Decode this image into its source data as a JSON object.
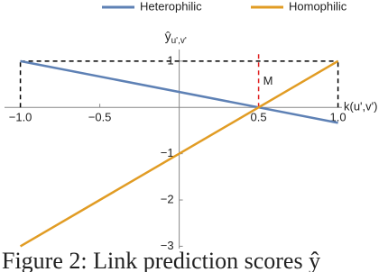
{
  "chart_data": {
    "type": "line",
    "x_label": "k(u',v')",
    "y_label": "ŷ",
    "y_label_sub": "u',v'",
    "x": [
      -1,
      1
    ],
    "series": [
      {
        "name": "Heterophilic",
        "color": "#5e81b5",
        "values": [
          1,
          -0.333
        ]
      },
      {
        "name": "Homophilic",
        "color": "#e19c24",
        "values": [
          -3,
          1
        ]
      }
    ],
    "xlim": [
      -1.1,
      1.15
    ],
    "ylim": [
      -3.05,
      1.25
    ],
    "xticks": [
      {
        "value": -1,
        "label": "−1.0"
      },
      {
        "value": -0.5,
        "label": "−0.5"
      },
      0.5,
      {
        "value": 1,
        "label": "1.0"
      }
    ],
    "yticks": [
      1,
      {
        "value": -1,
        "label": "−1"
      },
      {
        "value": -2,
        "label": "−2"
      },
      {
        "value": -3,
        "label": "−3"
      }
    ],
    "dashed_box": {
      "x": [
        -1,
        1
      ],
      "y": [
        0,
        1
      ]
    },
    "annotations": [
      {
        "text": "M",
        "x": 0.5,
        "y": 1.2,
        "color": "#e02020"
      }
    ],
    "legend": "top",
    "caption": "Figure 2: Link prediction scores ŷ"
  }
}
